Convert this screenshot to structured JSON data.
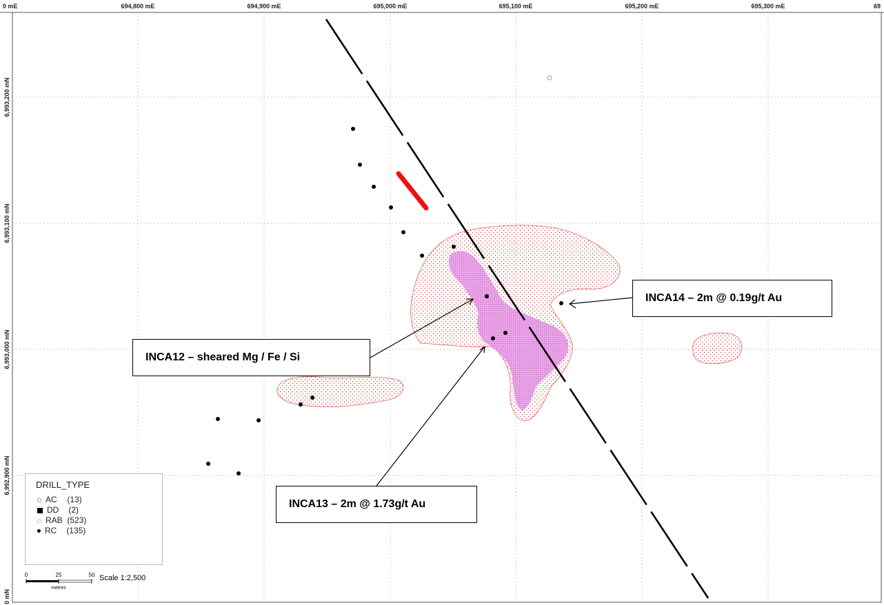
{
  "grid": {
    "eastings": [
      "694,800 mE",
      "694,900 mE",
      "695,000 mE",
      "695,100 mE",
      "695,200 mE",
      "695,300 mE"
    ],
    "edge_left_label": "0 mE",
    "edge_right_label": "69",
    "northings": [
      "6,993,200 mN",
      "6,993,100 mN",
      "6,993,000 mN",
      "6,992,900 mN"
    ],
    "edge_bottom_label": "0 mN"
  },
  "callouts": {
    "inca14": "INCA14 – 2m @ 0.19g/t Au",
    "inca12": "INCA12 – sheared Mg / Fe / Si",
    "inca13": "INCA13 – 2m @ 1.73g/t Au"
  },
  "legend": {
    "title": "DRILL_TYPE",
    "items": [
      {
        "label": "AC",
        "count": "(13)",
        "icon": "open-circle-icon"
      },
      {
        "label": "DD",
        "count": "(2)",
        "icon": "filled-square-icon"
      },
      {
        "label": "RAB",
        "count": "(523)",
        "icon": "faint-circle-icon"
      },
      {
        "label": "RC",
        "count": "(135)",
        "icon": "filled-dot-icon"
      }
    ]
  },
  "scale": {
    "tick_0": "0",
    "tick_25": "25",
    "tick_50": "50",
    "unit": "metres",
    "label": "Scale 1:2,500"
  },
  "colors": {
    "anomaly_red": "#e03030",
    "core_magenta": "#e58be6",
    "dd_trace": "#ee1111",
    "grid": "#c8c8c8"
  }
}
